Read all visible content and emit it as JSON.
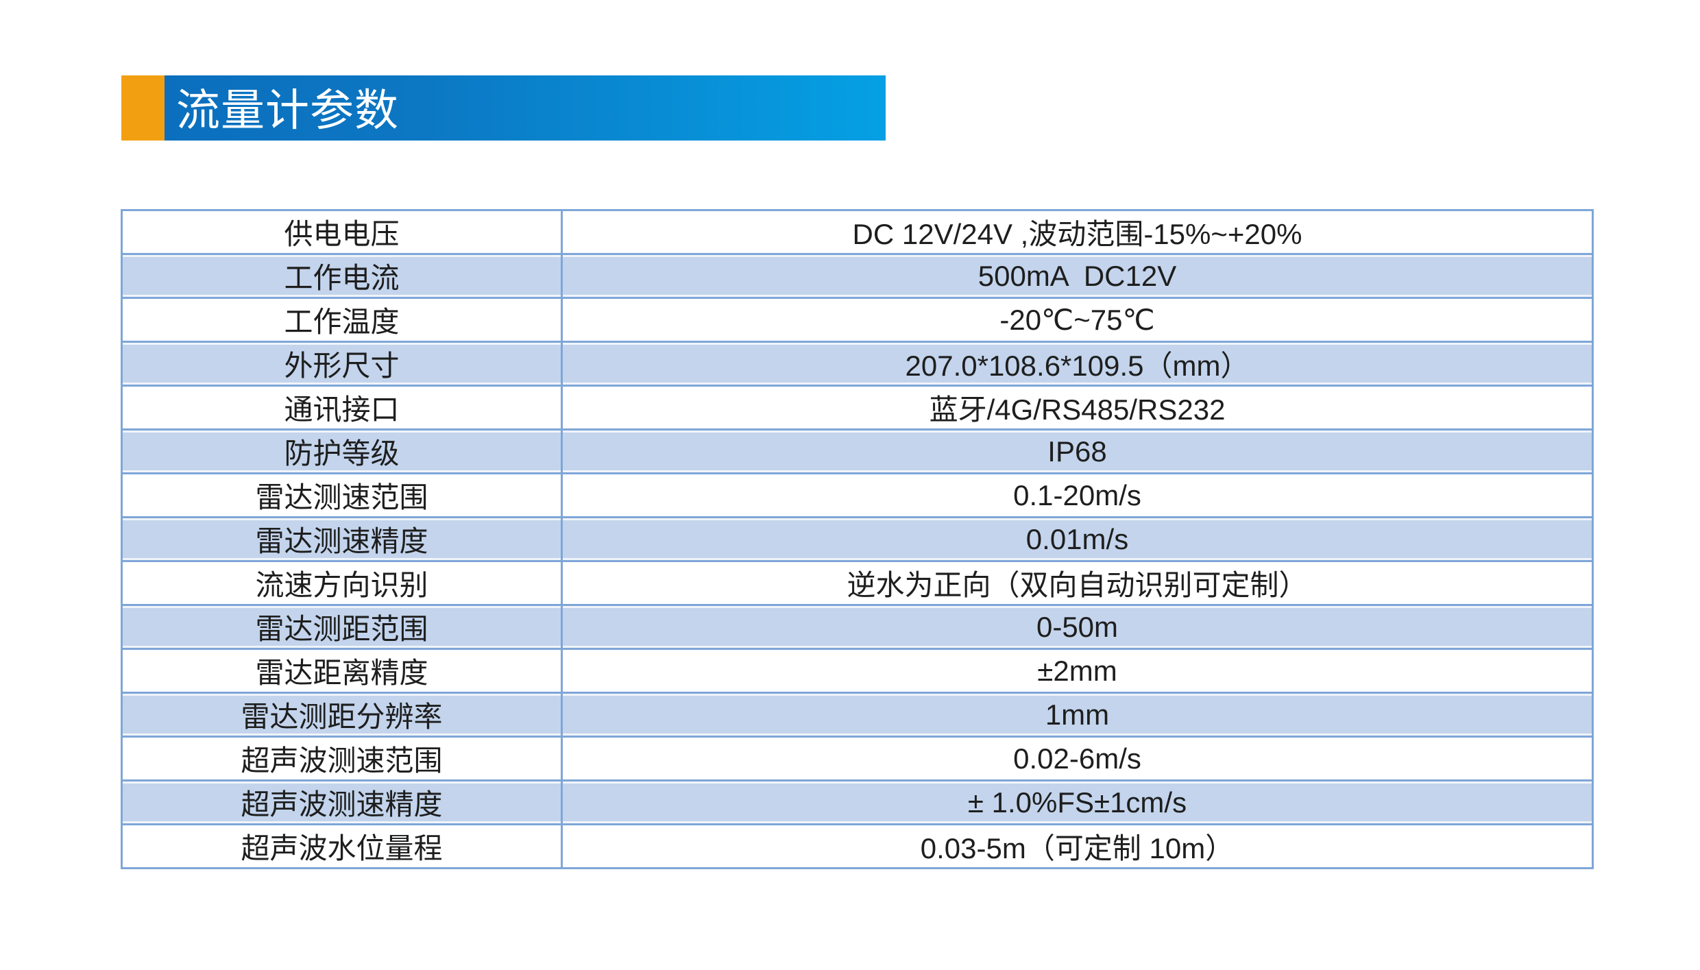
{
  "header": {
    "title": "流量计参数",
    "accent_color": "#f2a012",
    "banner_gradient_start": "#0b6fbe",
    "banner_gradient_end": "#05a0e4",
    "title_color": "#ffffff"
  },
  "table": {
    "border_color": "#7ea6d8",
    "alt_row_color": "#c3d4ec",
    "text_color": "#1e1e1e",
    "rows": [
      {
        "label": "供电电压",
        "value": "DC 12V/24V ,波动范围-15%~+20%"
      },
      {
        "label": "工作电流",
        "value": "500mA  DC12V"
      },
      {
        "label": "工作温度",
        "value": "-20℃~75℃"
      },
      {
        "label": "外形尺寸",
        "value": "207.0*108.6*109.5（mm）"
      },
      {
        "label": "通讯接口",
        "value": "蓝牙/4G/RS485/RS232"
      },
      {
        "label": "防护等级",
        "value": "IP68"
      },
      {
        "label": "雷达测速范围",
        "value": "0.1-20m/s"
      },
      {
        "label": "雷达测速精度",
        "value": "0.01m/s"
      },
      {
        "label": "流速方向识别",
        "value": "逆水为正向（双向自动识别可定制）"
      },
      {
        "label": "雷达测距范围",
        "value": "0-50m"
      },
      {
        "label": "雷达距离精度",
        "value": "±2mm"
      },
      {
        "label": "雷达测距分辨率",
        "value": "1mm"
      },
      {
        "label": "超声波测速范围",
        "value": "0.02-6m/s"
      },
      {
        "label": "超声波测速精度",
        "value": "± 1.0%FS±1cm/s"
      },
      {
        "label": "超声波水位量程",
        "value": "0.03-5m（可定制 10m）"
      }
    ]
  }
}
